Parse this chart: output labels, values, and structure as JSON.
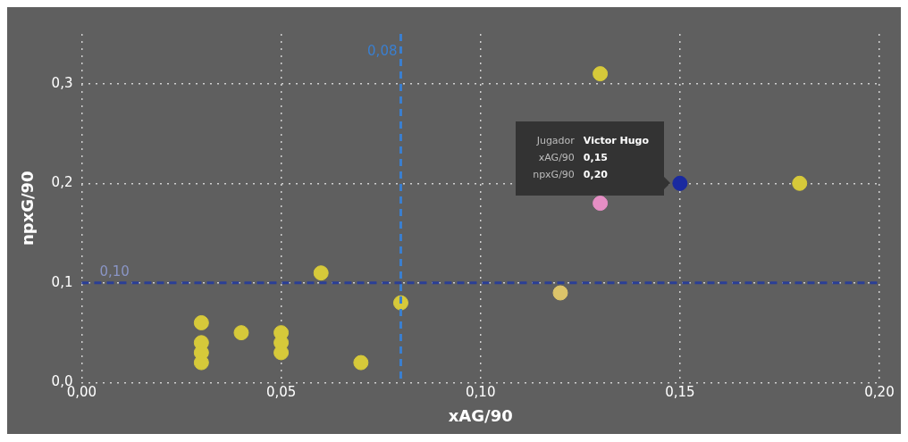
{
  "chart_data": {
    "type": "scatter",
    "xlabel": "xAG/90",
    "ylabel": "npxG/90",
    "xlim": [
      0,
      0.2
    ],
    "ylim": [
      0,
      0.35
    ],
    "xticks": [
      {
        "value": 0,
        "label": "0,00"
      },
      {
        "value": 0.05,
        "label": "0,05"
      },
      {
        "value": 0.1,
        "label": "0,10"
      },
      {
        "value": 0.15,
        "label": "0,15"
      },
      {
        "value": 0.2,
        "label": "0,20"
      }
    ],
    "yticks": [
      {
        "value": 0,
        "label": "0,0"
      },
      {
        "value": 0.1,
        "label": "0,1"
      },
      {
        "value": 0.2,
        "label": "0,2"
      },
      {
        "value": 0.3,
        "label": "0,3"
      }
    ],
    "grid": true,
    "marker": "circle",
    "series": [
      {
        "color": "#d6c93a",
        "x": [
          0.03,
          0.03,
          0.03,
          0.03,
          0.04,
          0.05,
          0.05,
          0.05,
          0.06,
          0.07,
          0.08,
          0.13,
          0.18
        ],
        "values": [
          0.06,
          0.04,
          0.03,
          0.02,
          0.05,
          0.05,
          0.04,
          0.03,
          0.11,
          0.02,
          0.08,
          0.31,
          0.2
        ]
      },
      {
        "color": "#dcc46a",
        "x": [
          0.12
        ],
        "values": [
          0.09
        ]
      },
      {
        "color": "#e58ec4",
        "x": [
          0.13
        ],
        "values": [
          0.18
        ]
      },
      {
        "color": "#1a2aa0",
        "x": [
          0.15
        ],
        "values": [
          0.2
        ]
      }
    ],
    "ref_lines": [
      {
        "axis": "x",
        "value": 0.08,
        "label": "0,08",
        "color": "#3a7fd0",
        "line_style": "dashed"
      },
      {
        "axis": "y",
        "value": 0.1,
        "label": "0,10",
        "color": "#2b3f96",
        "line_style": "dashed"
      }
    ],
    "annotations": [
      "Jugador",
      "Victor Hugo",
      "xAG/90",
      "0,15",
      "npxG/90",
      "0,20"
    ]
  }
}
